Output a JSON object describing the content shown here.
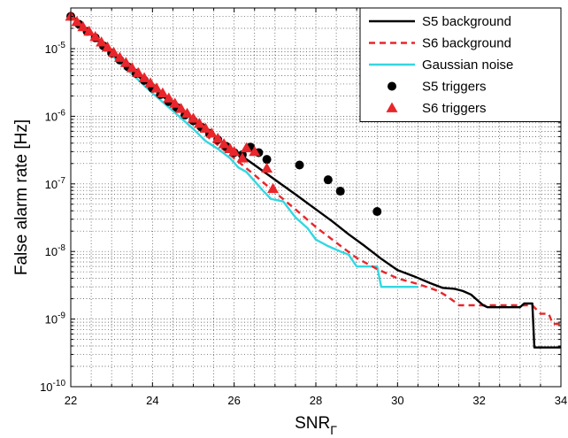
{
  "chart_data": {
    "type": "line",
    "title": "",
    "xlabel": "SNR",
    "xlabel_subscript": "Γ",
    "ylabel": "False alarm rate [Hz]",
    "xlim": [
      22,
      34
    ],
    "ylim": [
      1e-10,
      4e-05
    ],
    "yscale": "log",
    "grid": true,
    "legend_position": "top-right",
    "x_ticks": [
      22,
      24,
      26,
      28,
      30,
      32,
      34
    ],
    "x_tick_labels": [
      "22",
      "24",
      "26",
      "28",
      "30",
      "32",
      "34"
    ],
    "y_ticks": [
      1e-10,
      1e-09,
      1e-08,
      1e-07,
      1e-06,
      1e-05
    ],
    "y_tick_labels": [
      {
        "base": "10",
        "exp": "-10"
      },
      {
        "base": "10",
        "exp": "-9"
      },
      {
        "base": "10",
        "exp": "-8"
      },
      {
        "base": "10",
        "exp": "-7"
      },
      {
        "base": "10",
        "exp": "-6"
      },
      {
        "base": "10",
        "exp": "-5"
      }
    ],
    "series": [
      {
        "name": "S5 background",
        "kind": "line",
        "color": "#000000",
        "dash": "solid",
        "x": [
          22.0,
          22.5,
          23.0,
          23.5,
          24.0,
          24.5,
          25.0,
          25.5,
          26.0,
          26.5,
          27.0,
          27.5,
          28.0,
          28.4,
          28.8,
          29.2,
          29.6,
          30.0,
          30.4,
          30.8,
          31.1,
          31.4,
          31.6,
          31.8,
          32.0,
          32.1,
          32.2,
          32.3,
          33.0,
          33.1,
          33.3,
          33.35,
          34.0
        ],
        "y": [
          3.2e-05,
          1.65e-05,
          8.5e-06,
          4.7e-06,
          2.6e-06,
          1.5e-06,
          8.9e-07,
          5.1e-07,
          3.1e-07,
          1.9e-07,
          1.15e-07,
          7e-08,
          4.2e-08,
          2.8e-08,
          1.8e-08,
          1.2e-08,
          7.8e-09,
          5.3e-09,
          4.3e-09,
          3.4e-09,
          2.9e-09,
          2.8e-09,
          2.6e-09,
          2.3e-09,
          1.8e-09,
          1.6e-09,
          1.5e-09,
          1.5e-09,
          1.5e-09,
          1.7e-09,
          1.7e-09,
          3.8e-10,
          3.8e-10
        ]
      },
      {
        "name": "S6 background",
        "kind": "line",
        "color": "#e8262b",
        "dash": "dashed",
        "x": [
          22.0,
          22.5,
          23.0,
          23.5,
          24.0,
          24.5,
          25.0,
          25.5,
          26.0,
          26.5,
          27.0,
          27.5,
          28.0,
          28.5,
          29.0,
          29.5,
          30.0,
          30.5,
          31.0,
          31.2,
          31.4,
          31.5,
          33.3,
          33.5,
          33.7,
          33.8,
          34.0
        ],
        "y": [
          3.2e-05,
          1.6e-05,
          8e-06,
          4.3e-06,
          2.3e-06,
          1.3e-06,
          7.5e-07,
          4.2e-07,
          2.4e-07,
          1.35e-07,
          7.5e-08,
          4.2e-08,
          2.3e-08,
          1.35e-08,
          8e-09,
          5.5e-09,
          4e-09,
          3.3e-09,
          2.6e-09,
          2.2e-09,
          1.8e-09,
          1.6e-09,
          1.6e-09,
          1.2e-09,
          1.2e-09,
          8.5e-10,
          8.5e-10
        ]
      },
      {
        "name": "Gaussian noise",
        "kind": "line",
        "color": "#33d7e0",
        "dash": "solid",
        "x": [
          22.0,
          22.5,
          23.0,
          23.5,
          24.0,
          24.5,
          25.0,
          25.3,
          25.6,
          25.9,
          26.1,
          26.3,
          26.5,
          26.7,
          26.9,
          27.2,
          27.5,
          27.8,
          28.0,
          28.3,
          28.6,
          28.8,
          29.0,
          29.2,
          29.3,
          29.5,
          29.6,
          30.0,
          30.5
        ],
        "y": [
          3.2e-05,
          1.6e-05,
          8e-06,
          4.2e-06,
          2.2e-06,
          1.2e-06,
          6.5e-07,
          4.3e-07,
          3.3e-07,
          2.4e-07,
          1.75e-07,
          1.5e-07,
          1.1e-07,
          8e-08,
          6e-08,
          5.5e-08,
          3.2e-08,
          2.2e-08,
          1.5e-08,
          1.2e-08,
          1e-08,
          9e-09,
          6e-09,
          6e-09,
          6e-09,
          6e-09,
          3e-09,
          3e-09,
          3e-09
        ]
      },
      {
        "name": "S5 triggers",
        "kind": "marker",
        "marker": "circle",
        "color": "#000000",
        "x": [
          22.0,
          22.2,
          22.4,
          22.6,
          22.8,
          23.0,
          23.2,
          23.4,
          23.6,
          23.8,
          24.0,
          24.2,
          24.4,
          24.6,
          24.8,
          25.0,
          25.2,
          25.4,
          25.6,
          25.8,
          26.0,
          26.2,
          26.4,
          26.6,
          26.8,
          27.6,
          28.3,
          28.6,
          29.5
        ],
        "y": [
          3e-05,
          2.3e-05,
          1.8e-05,
          1.45e-05,
          1.1e-05,
          8.6e-06,
          6.8e-06,
          5.4e-06,
          4.3e-06,
          3.4e-06,
          2.6e-06,
          2.1e-06,
          1.65e-06,
          1.35e-06,
          1.05e-06,
          8.6e-07,
          6.9e-07,
          5.6e-07,
          4.5e-07,
          3.6e-07,
          2.9e-07,
          2.7e-07,
          3.5e-07,
          2.9e-07,
          2.3e-07,
          1.9e-07,
          1.15e-07,
          7.8e-08,
          3.9e-08
        ]
      },
      {
        "name": "S6 triggers",
        "kind": "marker",
        "marker": "triangle",
        "color": "#e8262b",
        "x": [
          22.0,
          22.15,
          22.3,
          22.45,
          22.6,
          22.75,
          22.9,
          23.05,
          23.2,
          23.35,
          23.5,
          23.65,
          23.8,
          23.95,
          24.1,
          24.25,
          24.4,
          24.55,
          24.7,
          24.85,
          25.0,
          25.15,
          25.3,
          25.45,
          25.6,
          25.75,
          25.9,
          26.0,
          26.2,
          26.3,
          26.5,
          26.8,
          26.95
        ],
        "y": [
          3e-05,
          2.5e-05,
          2.1e-05,
          1.8e-05,
          1.5e-05,
          1.25e-05,
          1.05e-05,
          8.8e-06,
          7.4e-06,
          6.2e-06,
          5.2e-06,
          4.4e-06,
          3.7e-06,
          3.1e-06,
          2.6e-06,
          2.2e-06,
          1.85e-06,
          1.55e-06,
          1.3e-06,
          1.1e-06,
          9.3e-07,
          7.8e-07,
          6.6e-07,
          5.6e-07,
          4.7e-07,
          3.9e-07,
          3.3e-07,
          3e-07,
          2.4e-07,
          3.4e-07,
          3e-07,
          1.7e-07,
          8.5e-08
        ]
      }
    ]
  }
}
